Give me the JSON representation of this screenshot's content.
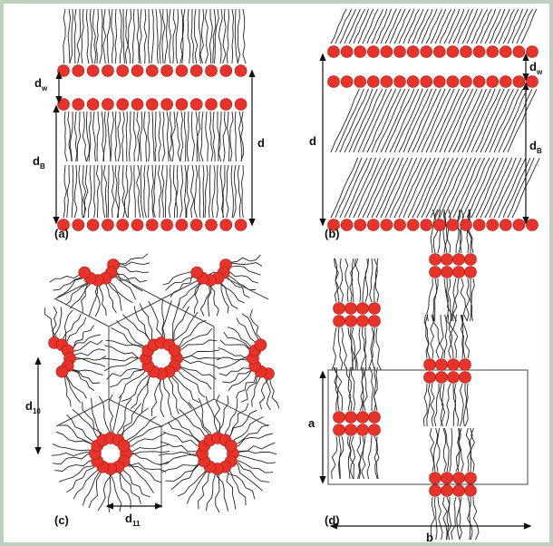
{
  "panels": [
    {
      "label": "(a)",
      "dims": [
        {
          "main": "d",
          "sub": "w"
        },
        {
          "main": "d",
          "sub": "B"
        },
        {
          "main": "d"
        }
      ]
    },
    {
      "label": "(b)",
      "dims": [
        {
          "main": "d"
        },
        {
          "main": "d",
          "sub": "w"
        },
        {
          "main": "d",
          "sub": "B"
        }
      ]
    },
    {
      "label": "(c)",
      "dims": [
        {
          "main": "d",
          "sub": "10"
        },
        {
          "main": "d",
          "sub": "11"
        }
      ]
    },
    {
      "label": "(d)",
      "dims": [
        {
          "main": "a"
        },
        {
          "main": "b"
        }
      ]
    }
  ]
}
